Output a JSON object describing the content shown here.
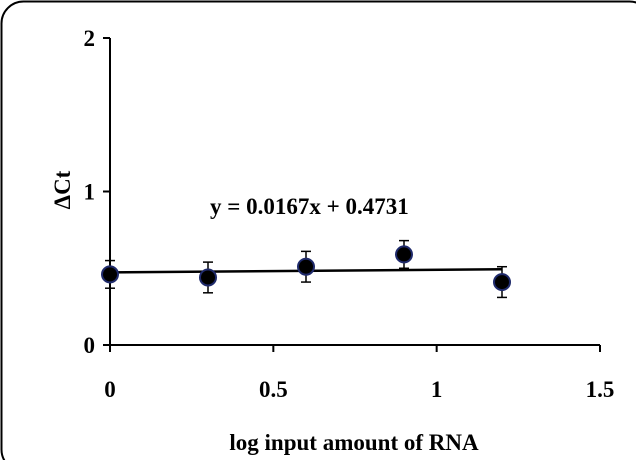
{
  "chart_data": {
    "type": "scatter",
    "title": "",
    "xlabel": "log input amount  of RNA",
    "ylabel": "ΔCt",
    "xlim": [
      0,
      1.5
    ],
    "ylim": [
      0,
      2
    ],
    "x_ticks": [
      "0",
      "0.5",
      "1",
      "1.5"
    ],
    "x_tick_values": [
      0,
      0.5,
      1,
      1.5
    ],
    "y_ticks": [
      "0",
      "1",
      "2"
    ],
    "y_tick_values": [
      0,
      1,
      2
    ],
    "grid": false,
    "series": [
      {
        "x": [
          0,
          0.3,
          0.6,
          0.9,
          1.2
        ],
        "y": [
          0.46,
          0.44,
          0.51,
          0.59,
          0.41
        ],
        "error": [
          0.09,
          0.1,
          0.1,
          0.09,
          0.1
        ],
        "marker_color": "#000000",
        "marker_edge_color": "#1f2a6b"
      }
    ],
    "trendline": {
      "slope": 0.0167,
      "intercept": 0.4731,
      "x_range": [
        0,
        1.2
      ],
      "equation": "y = 0.0167x + 0.4731"
    }
  }
}
